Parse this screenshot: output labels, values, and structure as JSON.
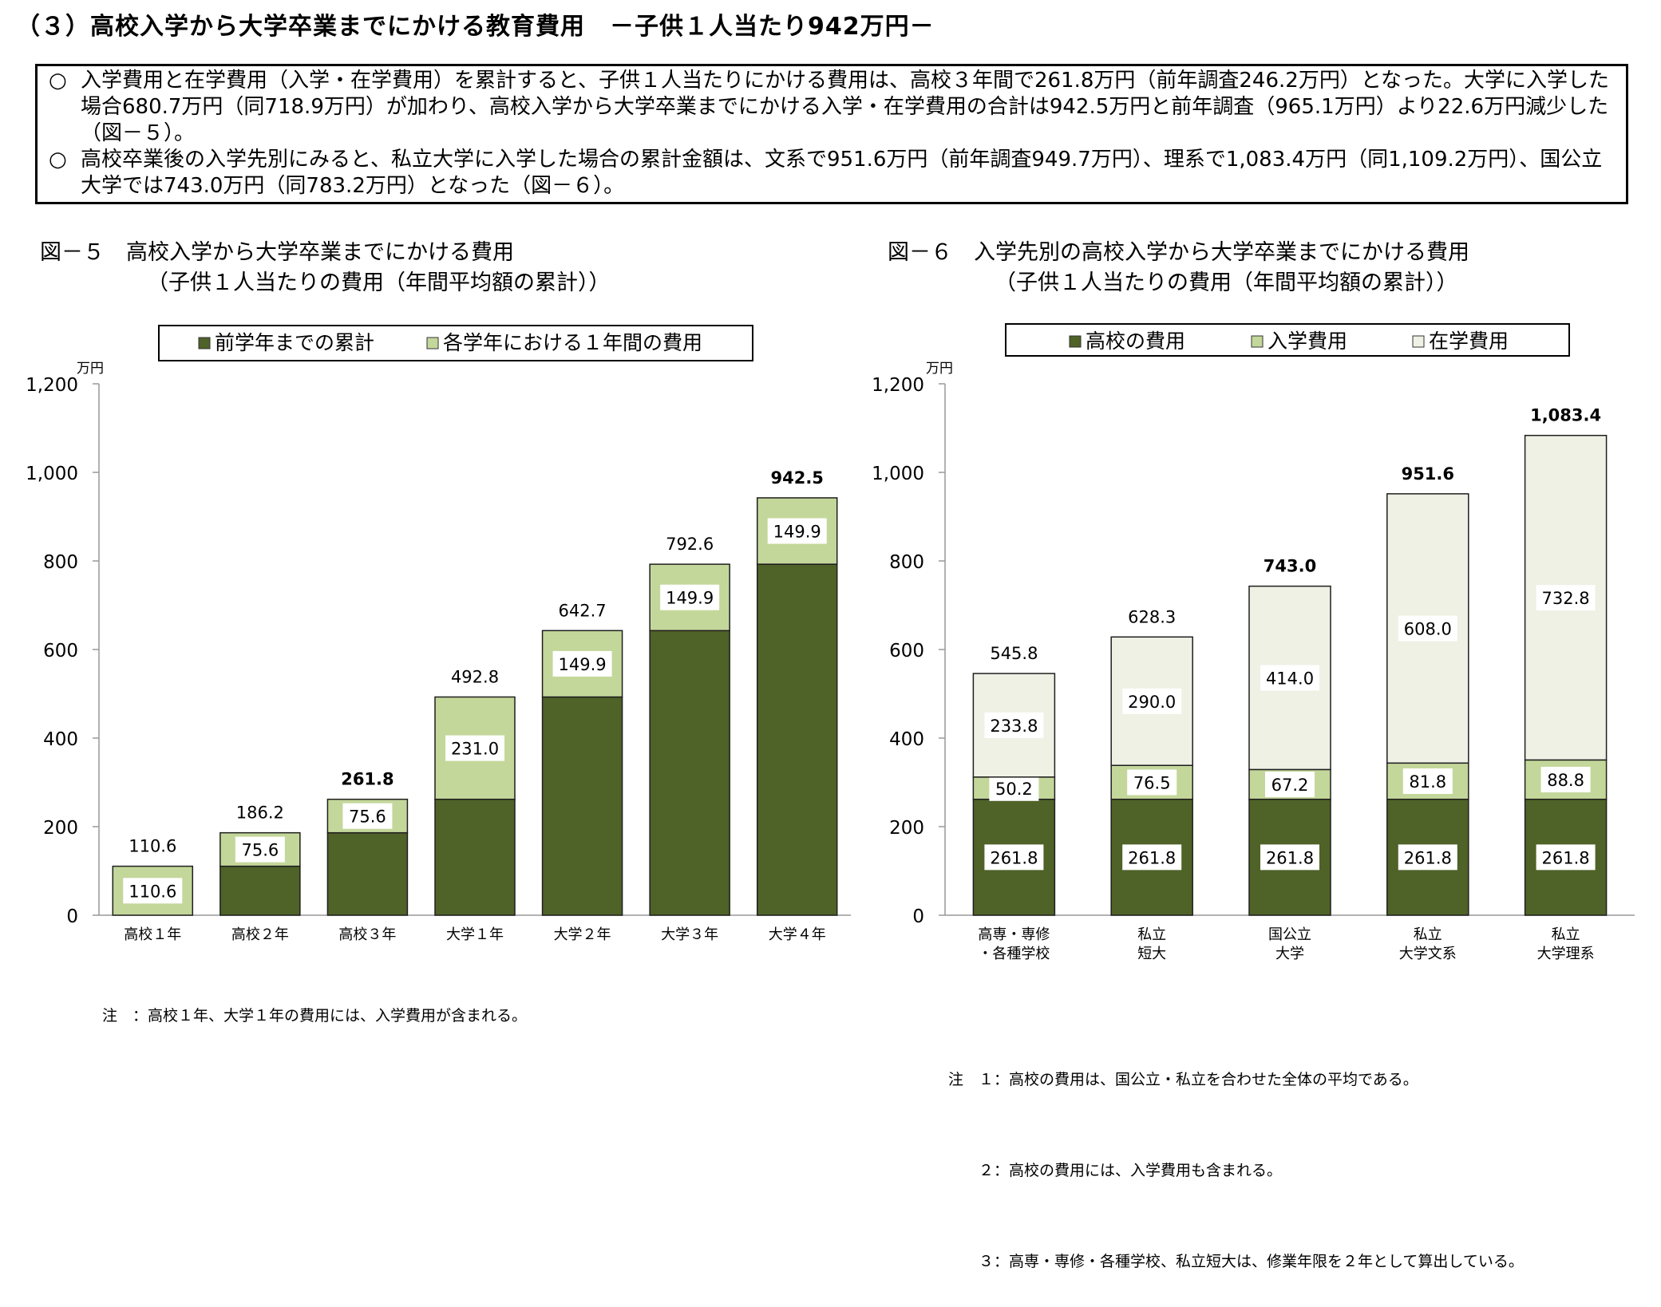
{
  "heading": "（３）高校入学から大学卒業までにかける教育費用　－子供１人当たり942万円－",
  "summary": {
    "bullet": "○",
    "items": [
      "入学費用と在学費用（入学・在学費用）を累計すると、子供１人当たりにかける費用は、高校３年間で261.8万円（前年調査246.2万円）となった。大学に入学した場合680.7万円（同718.9万円）が加わり、高校入学から大学卒業までにかける入学・在学費用の合計は942.5万円と前年調査（965.1万円）より22.6万円減少した（図－５）。",
      "高校卒業後の入学先別にみると、私立大学に入学した場合の累計金額は、文系で951.6万円（前年調査949.7万円）、理系で1,083.4万円（同1,109.2万円）、国公立大学では743.0万円（同783.2万円）となった（図－６）。"
    ]
  },
  "fig5": {
    "title": "図－５　高校入学から大学卒業までにかける費用",
    "subtitle": "（子供１人当たりの費用（年間平均額の累計））",
    "note": "注　：高校１年、大学１年の費用には、入学費用が含まれる。"
  },
  "fig6": {
    "title": "図－６　入学先別の高校入学から大学卒業までにかける費用",
    "subtitle": "（子供１人当たりの費用（年間平均額の累計））",
    "notes": [
      "注　１：高校の費用は、国公立・私立を合わせた全体の平均である。",
      "　　２：高校の費用には、入学費用も含まれる。",
      "　　３：高専・専修・各種学校、私立短大は、修業年限を２年として算出している。"
    ]
  },
  "chart_data": [
    {
      "type": "bar",
      "stacked": true,
      "unit": "万円",
      "categories": [
        "高校１年",
        "高校２年",
        "高校３年",
        "大学１年",
        "大学２年",
        "大学３年",
        "大学４年"
      ],
      "series": [
        {
          "name": "前学年までの累計",
          "color": "#4f6228",
          "values": [
            0,
            110.6,
            186.2,
            261.8,
            492.8,
            642.7,
            792.6
          ]
        },
        {
          "name": "各学年における１年間の費用",
          "color": "#c4d79b",
          "values": [
            110.6,
            75.6,
            75.6,
            231.0,
            149.9,
            149.9,
            149.9
          ]
        }
      ],
      "segment_labels": [
        [
          null,
          null,
          null,
          null,
          null,
          null,
          null
        ],
        [
          "110.6",
          "75.6",
          "75.6",
          "231.0",
          "149.9",
          "149.9",
          "149.9"
        ]
      ],
      "totals": [
        "110.6",
        "186.2",
        "261.8",
        "492.8",
        "642.7",
        "792.6",
        "942.5"
      ],
      "bold_totals": [
        false,
        false,
        true,
        false,
        false,
        false,
        true
      ],
      "yticks": [
        "0",
        "200",
        "400",
        "600",
        "800",
        "1,000",
        "1,200"
      ],
      "ylim": [
        0,
        1200
      ],
      "legend": "top"
    },
    {
      "type": "bar",
      "stacked": true,
      "unit": "万円",
      "categories": [
        [
          "高専・専修",
          "・各種学校"
        ],
        [
          "私立",
          "短大"
        ],
        [
          "国公立",
          "大学"
        ],
        [
          "私立",
          "大学文系"
        ],
        [
          "私立",
          "大学理系"
        ]
      ],
      "series": [
        {
          "name": "高校の費用",
          "color": "#4f6228",
          "values": [
            261.8,
            261.8,
            261.8,
            261.8,
            261.8
          ]
        },
        {
          "name": "入学費用",
          "color": "#c4d79b",
          "values": [
            50.2,
            76.5,
            67.2,
            81.8,
            88.8
          ]
        },
        {
          "name": "在学費用",
          "color": "#eef1e4",
          "values": [
            233.8,
            290.0,
            414.0,
            608.0,
            732.8
          ]
        }
      ],
      "segment_labels": [
        [
          "261.8",
          "261.8",
          "261.8",
          "261.8",
          "261.8"
        ],
        [
          "50.2",
          "76.5",
          "67.2",
          "81.8",
          "88.8"
        ],
        [
          "233.8",
          "290.0",
          "414.0",
          "608.0",
          "732.8"
        ]
      ],
      "totals": [
        "545.8",
        "628.3",
        "743.0",
        "951.6",
        "1,083.4"
      ],
      "bold_totals": [
        false,
        false,
        true,
        true,
        true
      ],
      "yticks": [
        "0",
        "200",
        "400",
        "600",
        "800",
        "1,000",
        "1,200"
      ],
      "ylim": [
        0,
        1200
      ],
      "legend": "top"
    }
  ]
}
